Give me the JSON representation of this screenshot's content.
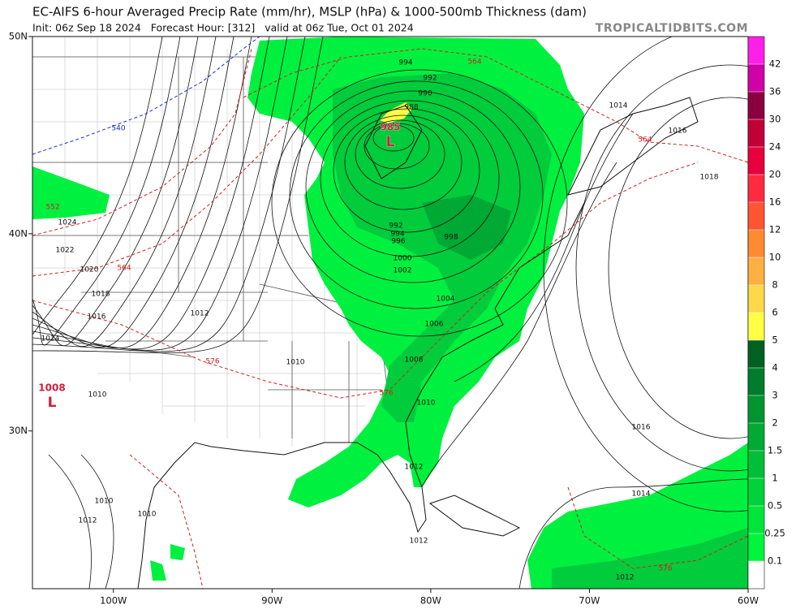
{
  "header": {
    "title": "EC-AIFS 6-hour Averaged Precip Rate (mm/hr), MSLP (hPa) & 1000-500mb Thickness (dam)",
    "subtitle": "Init: 06z Sep 18 2024   Forecast Hour: [312]   valid at 06z Tue, Oct 01 2024",
    "watermark": "TROPICALTIDBITS.COM"
  },
  "map": {
    "xlim": [
      -105.1,
      -60
    ],
    "ylim": [
      22,
      50
    ],
    "xticks": [
      {
        "value": -100,
        "label": "100W"
      },
      {
        "value": -90,
        "label": "90W"
      },
      {
        "value": -80,
        "label": "80W"
      },
      {
        "value": -70,
        "label": "70W"
      },
      {
        "value": -60,
        "label": "60W"
      }
    ],
    "yticks": [
      {
        "value": 50,
        "label": "50N"
      },
      {
        "value": 40,
        "label": "40N"
      },
      {
        "value": 30,
        "label": "30N"
      }
    ],
    "colorbar": {
      "levels": [
        0.1,
        0.25,
        0.5,
        1,
        1.5,
        2,
        3,
        4,
        5,
        6,
        8,
        10,
        12,
        16,
        20,
        24,
        30,
        36,
        42
      ],
      "colors": [
        "#ffffff",
        "#00f53c",
        "#00e53a",
        "#00d23a",
        "#00be38",
        "#00aa34",
        "#009530",
        "#007d2a",
        "#006020",
        "#ffff44",
        "#ffd84a",
        "#ffb040",
        "#ff8a30",
        "#ff5530",
        "#ff2a40",
        "#e8003c",
        "#c20038",
        "#8c0040",
        "#d000a8",
        "#ff20e8"
      ]
    },
    "isobar_labels": [
      994,
      992,
      990,
      988,
      992,
      994,
      996,
      998,
      1000,
      1002,
      1004,
      1006,
      1008,
      1010,
      1012,
      1012,
      1014,
      1016,
      1018,
      1024,
      1022,
      1020,
      1018,
      1016,
      1012,
      1014,
      1010,
      1010,
      1016,
      1014,
      1012,
      1010,
      1012,
      1010
    ],
    "thickness_labels": [
      {
        "value": 564,
        "color": "#d42020"
      },
      {
        "value": 564,
        "color": "#d42020"
      },
      {
        "value": 552,
        "color": "#d42020"
      },
      {
        "value": 564,
        "color": "#d42020"
      },
      {
        "value": 576,
        "color": "#d42020"
      },
      {
        "value": 576,
        "color": "#d42020"
      },
      {
        "value": 576,
        "color": "#d42020"
      },
      {
        "value": 540,
        "color": "#2030d0"
      }
    ],
    "lows": [
      {
        "pressure": 985,
        "symbol": "L"
      },
      {
        "pressure": 1008,
        "symbol": "L"
      }
    ]
  }
}
